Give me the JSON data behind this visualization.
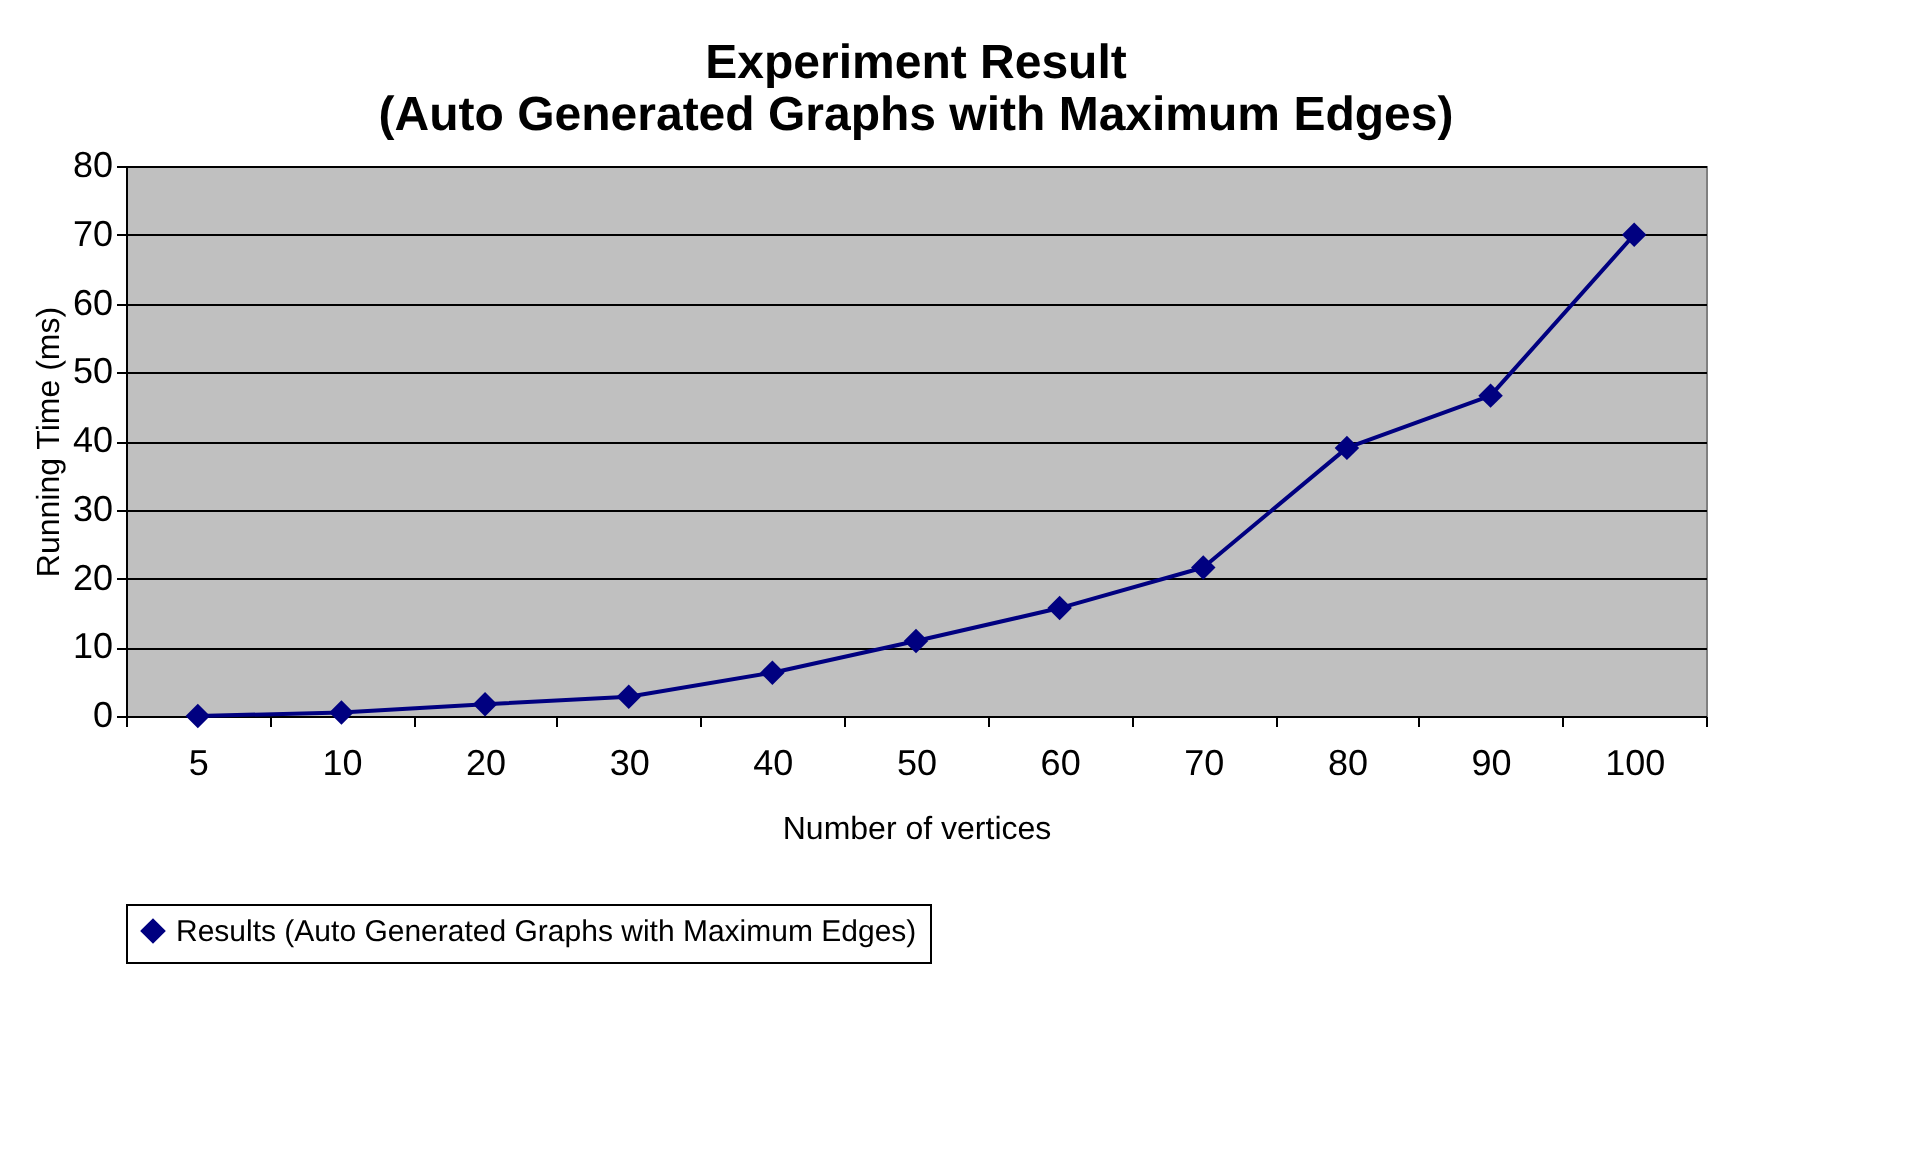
{
  "chart_data": {
    "type": "line",
    "title": "Experiment Result\n(Auto Generated Graphs with Maximum Edges)",
    "xlabel": "Number of vertices",
    "ylabel": "Running Time (ms)",
    "categories": [
      "5",
      "10",
      "20",
      "30",
      "40",
      "50",
      "60",
      "70",
      "80",
      "90",
      "100"
    ],
    "series": [
      {
        "name": "Results (Auto Generated Graphs with Maximum Edges)",
        "color": "#000080",
        "values": [
          0,
          0.5,
          1.7,
          2.8,
          6.3,
          10.9,
          15.7,
          21.6,
          39.0,
          46.6,
          70
        ]
      }
    ],
    "ylim": [
      0,
      80
    ],
    "yticks": [
      0,
      10,
      20,
      30,
      40,
      50,
      60,
      70,
      80
    ],
    "grid": "y",
    "legend": "bottom",
    "marker": "diamond",
    "line_style": "solid"
  }
}
